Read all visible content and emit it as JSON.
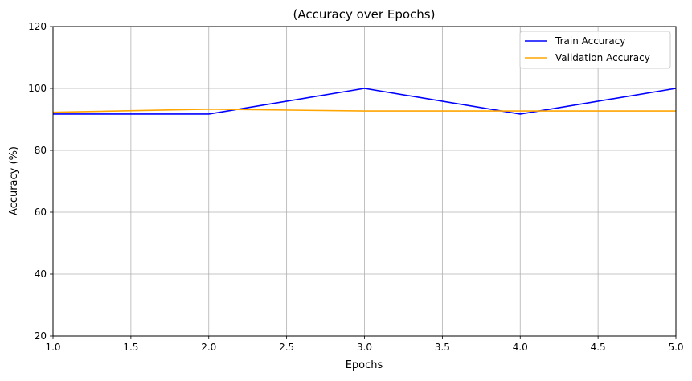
{
  "chart_data": {
    "type": "line",
    "title": "(Accuracy over Epochs)",
    "xlabel": "Epochs",
    "ylabel": "Accuracy (%)",
    "xlim": [
      1.0,
      5.0
    ],
    "ylim": [
      20,
      120
    ],
    "xticks": [
      "1.0",
      "1.5",
      "2.0",
      "2.5",
      "3.0",
      "3.5",
      "4.0",
      "4.5",
      "5.0"
    ],
    "yticks": [
      "20",
      "40",
      "60",
      "80",
      "100",
      "120"
    ],
    "grid": true,
    "legend_position": "top-right",
    "x": [
      1,
      2,
      3,
      4,
      5
    ],
    "series": [
      {
        "name": "Train Accuracy",
        "color": "#0000ff",
        "values": [
          91.7,
          91.7,
          100.0,
          91.7,
          100.0
        ]
      },
      {
        "name": "Validation Accuracy",
        "color": "#ffa500",
        "values": [
          92.3,
          93.3,
          92.7,
          92.7,
          92.7
        ]
      }
    ]
  }
}
